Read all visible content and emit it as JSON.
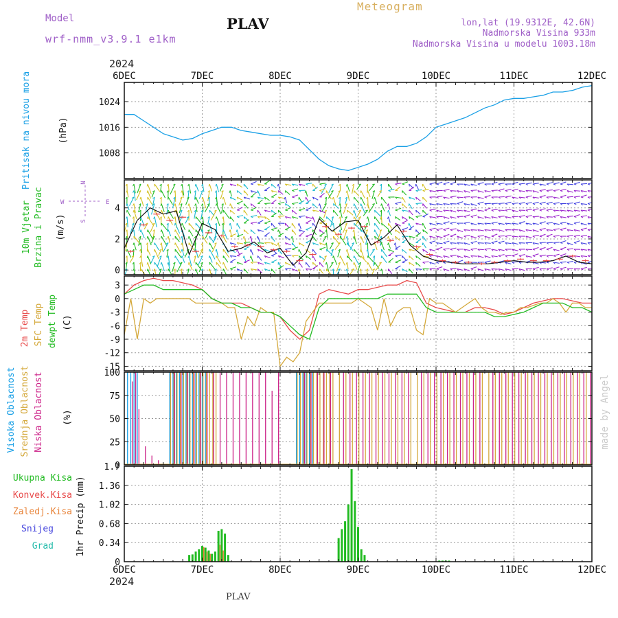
{
  "header": {
    "model_label": "Model",
    "model_name": "wrf-nmm_v3.9.1 e1km",
    "station": "PLAV",
    "product": "Meteogram",
    "lonlat": "lon,lat (19.9312E, 42.6N)",
    "elevation": "Nadmorska Visina 933m",
    "model_elevation": "Nadmorska Visina u modelu 1003.18m",
    "start_year": "2024",
    "credit": "made by Angel",
    "footer_station": "PLAV"
  },
  "colors": {
    "pressure": "#1aa0e6",
    "wind_label": "#22bb22",
    "temp2m": "#e84a4a",
    "sfc": "#d4a83a",
    "dew": "#22bb22",
    "cloud_high": "#1aa0e6",
    "cloud_mid": "#d4a83a",
    "cloud_low": "#cc2288",
    "precip_total": "#22bb22",
    "precip_conv": "#e84a4a",
    "precip_frz": "#e8843a",
    "precip_snow": "#4444dd",
    "precip_hail": "#22bbaa",
    "header_violet": "#a060c8",
    "meteogram": "#d8b060",
    "credit": "#cccccc"
  },
  "chart_data": {
    "type": "line",
    "x_axis": {
      "ticks": [
        "6DEC",
        "7DEC",
        "8DEC",
        "9DEC",
        "10DEC",
        "11DEC",
        "12DEC"
      ],
      "start_year": "2024",
      "range_hours": [
        0,
        144
      ]
    },
    "panels": {
      "pressure": {
        "title": "Pritisak na nivou mora",
        "unit": "(hPa)",
        "yticks": [
          1008,
          1016,
          1024
        ],
        "ylim": [
          1000,
          1030
        ],
        "series": {
          "hours": [
            0,
            3,
            6,
            9,
            12,
            15,
            18,
            21,
            24,
            27,
            30,
            33,
            36,
            39,
            42,
            45,
            48,
            51,
            54,
            57,
            60,
            63,
            66,
            69,
            72,
            75,
            78,
            81,
            84,
            87,
            90,
            93,
            96,
            99,
            102,
            105,
            108,
            111,
            114,
            117,
            120,
            123,
            126,
            129,
            132,
            135,
            138,
            141,
            144
          ],
          "values": [
            1020,
            1020,
            1018,
            1016,
            1014,
            1013,
            1012,
            1012.5,
            1014,
            1015,
            1016,
            1016,
            1015,
            1014.5,
            1014,
            1013.5,
            1013.5,
            1013,
            1012,
            1009,
            1006,
            1004,
            1003,
            1002.5,
            1003.5,
            1004.5,
            1006,
            1008.5,
            1010,
            1010,
            1011,
            1013,
            1016,
            1017,
            1018,
            1019,
            1020.5,
            1022,
            1023,
            1024.5,
            1025,
            1025,
            1025.5,
            1026,
            1027,
            1027,
            1027.5,
            1028.5,
            1029
          ]
        }
      },
      "wind": {
        "title": [
          "10m Vjetar",
          "Brzina i Pravac"
        ],
        "unit": "(m/s)",
        "yticks": [
          0,
          2,
          4
        ],
        "ylim": [
          -0.3,
          5.8
        ],
        "compass": {
          "n": "N",
          "s": "S",
          "e": "E",
          "w": "W"
        },
        "black_line": {
          "hours": [
            0,
            4,
            8,
            12,
            16,
            20,
            24,
            28,
            32,
            36,
            40,
            44,
            48,
            52,
            56,
            60,
            64,
            68,
            72,
            76,
            80,
            84,
            88,
            92,
            96,
            100,
            104,
            108,
            112,
            116,
            120,
            124,
            128,
            132,
            136,
            140,
            144
          ],
          "values": [
            1.4,
            3.2,
            4.0,
            3.6,
            3.8,
            1.0,
            3.0,
            2.6,
            1.2,
            1.4,
            1.8,
            1.1,
            1.4,
            0.3,
            1.1,
            3.3,
            2.5,
            3.1,
            3.2,
            1.6,
            2.1,
            2.9,
            1.6,
            0.9,
            0.6,
            0.5,
            0.4,
            0.4,
            0.4,
            0.5,
            0.6,
            0.5,
            0.5,
            0.6,
            0.9,
            0.5,
            0.4
          ]
        },
        "red_marks": {
          "hours": [
            2,
            6,
            10,
            14,
            18,
            22,
            26,
            30,
            34,
            38,
            42,
            46,
            50,
            54,
            58,
            62,
            66,
            70,
            74,
            78,
            82,
            86,
            90,
            94,
            98,
            102,
            106,
            110,
            114,
            118,
            122,
            126,
            130,
            134,
            138,
            142
          ],
          "values": [
            1.2,
            2.9,
            3.6,
            3.2,
            3.4,
            1.2,
            2.4,
            2.2,
            1.5,
            1.6,
            1.5,
            1.3,
            1.2,
            0.6,
            1.0,
            2.8,
            2.3,
            2.7,
            2.8,
            1.8,
            1.9,
            2.5,
            1.5,
            1.0,
            0.6,
            0.5,
            0.5,
            0.4,
            0.5,
            0.6,
            0.7,
            0.6,
            0.6,
            0.7,
            0.9,
            0.6
          ]
        }
      },
      "temperature": {
        "labels": [
          "2m Temp",
          "SFC Temp",
          "dewpt Temp"
        ],
        "unit": "(C)",
        "yticks": [
          -15,
          -12,
          -9,
          -6,
          -3,
          0,
          3
        ],
        "ylim": [
          -16,
          5
        ],
        "t2m": {
          "hours": [
            0,
            3,
            6,
            9,
            12,
            15,
            18,
            21,
            24,
            27,
            30,
            33,
            36,
            39,
            42,
            45,
            48,
            51,
            54,
            57,
            60,
            63,
            66,
            69,
            72,
            75,
            78,
            81,
            84,
            87,
            90,
            93,
            96,
            99,
            102,
            105,
            108,
            111,
            114,
            117,
            120,
            123,
            126,
            129,
            132,
            135,
            138,
            141,
            144
          ],
          "values": [
            1,
            3,
            4,
            4.5,
            4,
            4,
            3.5,
            3,
            2,
            0,
            -1,
            -1,
            -1,
            -2,
            -3,
            -3,
            -4,
            -7,
            -9,
            -7,
            1,
            2,
            1.5,
            1,
            2,
            2,
            2.5,
            3,
            3,
            4,
            3.5,
            -1,
            -2,
            -2.5,
            -3,
            -3,
            -2,
            -2,
            -2.5,
            -3.5,
            -3,
            -2,
            -1,
            -0.5,
            0,
            0,
            -0.5,
            -1,
            -1
          ]
        },
        "sfc": {
          "hours": [
            0,
            2,
            4,
            6,
            8,
            10,
            12,
            14,
            16,
            18,
            20,
            22,
            24,
            26,
            28,
            30,
            32,
            34,
            36,
            38,
            40,
            42,
            44,
            46,
            48,
            50,
            52,
            54,
            56,
            58,
            60,
            62,
            64,
            66,
            68,
            70,
            72,
            74,
            76,
            78,
            80,
            82,
            84,
            86,
            88,
            90,
            92,
            94,
            96,
            98,
            100,
            102,
            104,
            106,
            108,
            110,
            112,
            114,
            116,
            118,
            120,
            122,
            124,
            126,
            128,
            130,
            132,
            134,
            136,
            138,
            140,
            142,
            144
          ],
          "values": [
            -8,
            0,
            -9,
            0,
            -1,
            0,
            0,
            0,
            0,
            0,
            0,
            -1,
            -1,
            -1,
            -1,
            -1,
            -2,
            -2,
            -9,
            -4,
            -6,
            -2,
            -3,
            -3,
            -15,
            -13,
            -14,
            -12,
            -5,
            -3,
            -1,
            -1,
            -1,
            -1,
            -1,
            -1,
            0,
            -1,
            -2,
            -7,
            0,
            -6,
            -3,
            -2,
            -2,
            -7,
            -8,
            0,
            -1,
            -1,
            -2,
            -3,
            -2,
            -1,
            0,
            -2,
            -3,
            -3,
            -3.5,
            -3,
            -3,
            -2,
            -2,
            -1.5,
            -1,
            -1,
            0,
            -1,
            -3,
            -1,
            -1,
            -2,
            -2
          ]
        },
        "dew": {
          "hours": [
            0,
            3,
            6,
            9,
            12,
            15,
            18,
            21,
            24,
            27,
            30,
            33,
            36,
            39,
            42,
            45,
            48,
            51,
            54,
            57,
            60,
            63,
            66,
            69,
            72,
            75,
            78,
            81,
            84,
            87,
            90,
            93,
            96,
            99,
            102,
            105,
            108,
            111,
            114,
            117,
            120,
            123,
            126,
            129,
            132,
            135,
            138,
            141,
            144
          ],
          "values": [
            1,
            2,
            3,
            3,
            2,
            2,
            2,
            2,
            2,
            0,
            -1,
            -1,
            -2,
            -2,
            -3,
            -3,
            -4,
            -6,
            -8,
            -9,
            -2,
            0,
            0,
            0,
            0,
            0,
            0,
            1,
            1,
            1,
            1,
            -2,
            -3,
            -3,
            -3,
            -3,
            -3,
            -3,
            -4,
            -4,
            -3.5,
            -3,
            -2,
            -1,
            -1,
            -1,
            -2,
            -2,
            -3
          ]
        }
      },
      "clouds": {
        "labels": [
          "Visoka Oblacnost",
          "Srednja Oblacnost",
          "Niska Oblacnost"
        ],
        "unit": "(%)",
        "yticks": [
          0,
          25,
          50,
          75,
          100
        ],
        "ylim": [
          0,
          100
        ],
        "high": {
          "hours": [
            1,
            2,
            3,
            4,
            14,
            15,
            16,
            17,
            18,
            19,
            20,
            21,
            22,
            23,
            24,
            25,
            53,
            54,
            55,
            56,
            57,
            58
          ],
          "values": [
            100,
            100,
            100,
            100,
            100,
            100,
            100,
            100,
            100,
            100,
            100,
            100,
            100,
            100,
            100,
            100,
            100,
            100,
            100,
            100,
            100,
            100
          ]
        },
        "mid": {
          "hours": [
            14,
            15,
            16,
            17,
            18,
            19,
            20,
            21,
            22,
            23,
            24,
            25,
            26,
            27,
            28,
            53,
            54,
            55,
            56,
            57,
            58,
            59,
            60,
            61,
            62,
            63,
            64,
            66,
            68,
            70,
            72,
            74,
            76,
            78,
            80,
            82,
            84,
            86,
            88,
            90,
            92,
            94,
            96,
            98,
            100,
            102,
            104,
            106,
            108,
            110,
            112,
            114,
            116,
            118,
            120,
            122,
            124,
            126,
            128,
            130,
            132,
            134,
            136,
            138,
            140,
            142
          ],
          "values": [
            100,
            100,
            100,
            100,
            100,
            100,
            100,
            100,
            100,
            100,
            100,
            100,
            100,
            100,
            100,
            100,
            100,
            100,
            100,
            100,
            100,
            100,
            100,
            100,
            100,
            100,
            100,
            100,
            100,
            100,
            100,
            100,
            100,
            100,
            100,
            100,
            100,
            100,
            100,
            100,
            100,
            100,
            100,
            100,
            100,
            100,
            100,
            100,
            100,
            100,
            100,
            100,
            100,
            100,
            100,
            100,
            100,
            100,
            100,
            100,
            100,
            100,
            100,
            100,
            100,
            100
          ]
        },
        "low": {
          "hours": [
            2,
            3,
            4,
            6,
            8,
            10,
            15,
            17,
            19,
            21,
            23,
            25,
            27,
            29,
            31,
            33,
            35,
            37,
            39,
            41,
            43,
            45,
            47,
            55,
            57,
            59,
            61,
            63,
            67,
            69,
            71,
            73,
            75,
            77,
            79,
            81,
            83,
            85,
            87,
            91,
            93,
            95,
            97,
            99,
            101,
            103,
            105,
            107,
            109,
            113,
            115,
            117,
            119,
            121,
            123,
            125,
            127,
            129,
            131,
            133,
            135,
            137,
            139,
            141,
            143
          ],
          "values": [
            90,
            100,
            60,
            20,
            10,
            5,
            100,
            100,
            100,
            100,
            100,
            100,
            100,
            100,
            100,
            100,
            100,
            100,
            100,
            100,
            100,
            80,
            100,
            100,
            100,
            100,
            100,
            100,
            100,
            100,
            100,
            100,
            100,
            100,
            100,
            100,
            100,
            100,
            100,
            100,
            100,
            100,
            100,
            100,
            100,
            100,
            100,
            100,
            100,
            100,
            100,
            100,
            100,
            100,
            100,
            100,
            100,
            100,
            100,
            100,
            100,
            100,
            100,
            100,
            100
          ]
        }
      },
      "precip": {
        "labels": [
          "Ukupna Kisa",
          "Konvek.Kisa",
          "Zaledj.Kisa",
          "Snijeg",
          "Grad"
        ],
        "unit": "1hr Precip (mm)",
        "yticks": [
          0,
          0.34,
          0.68,
          1.02,
          1.36,
          1.7
        ],
        "ylim": [
          0,
          1.7
        ],
        "total": {
          "hours": [
            20,
            21,
            22,
            23,
            24,
            25,
            26,
            27,
            28,
            29,
            30,
            31,
            32,
            66,
            67,
            68,
            69,
            70,
            71,
            72,
            73,
            74,
            97,
            98,
            99,
            100
          ],
          "values": [
            0.12,
            0.13,
            0.18,
            0.22,
            0.28,
            0.25,
            0.2,
            0.14,
            0.18,
            0.55,
            0.58,
            0.5,
            0.12,
            0.42,
            0.58,
            0.72,
            1.02,
            1.65,
            1.08,
            0.62,
            0.22,
            0.12,
            0.02,
            0.02,
            0.02,
            0.02
          ]
        },
        "frozen": {
          "hours": [
            24,
            25,
            26,
            29,
            30
          ],
          "values": [
            0.26,
            0.18,
            0.14,
            0.3,
            0.2
          ]
        }
      }
    }
  }
}
